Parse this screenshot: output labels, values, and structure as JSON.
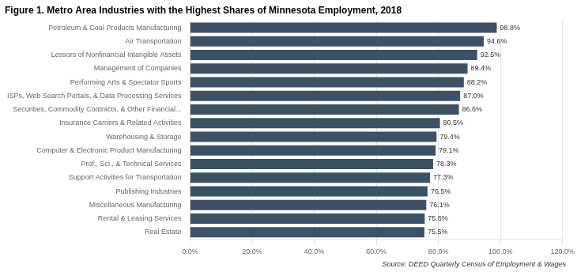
{
  "chart_data": {
    "type": "bar",
    "orientation": "horizontal",
    "title": "Figure 1. Metro Area Industries with the Highest Shares of Minnesota Employment, 2018",
    "annotations": [
      "Source: DEED Quarterly Census of Employment & Wages"
    ],
    "categories": [
      "Real Estate",
      "Rental & Leasing Services",
      "Miscellaneous Manufacturing",
      "Publishing Industries",
      "Support Activities for Transportation",
      "Prof., Sci., & Technical Services",
      "Computer & Electronic Product Manufacturing",
      "Warehousing & Storage",
      "Insurance Carriers & Related Activities",
      "Securities, Commodity Contracts, & Other Financial...",
      "ISPs, Web Search Portals, & Data Processing Services",
      "Performing Arts & Spectator Sports",
      "Management of Companies",
      "Lessors of Nonfinancial Intangible Assets",
      "Air Transportation",
      "Petroleum & Coal Products Manufacturing"
    ],
    "values": [
      0.755,
      0.756,
      0.761,
      0.765,
      0.773,
      0.783,
      0.791,
      0.794,
      0.805,
      0.866,
      0.87,
      0.882,
      0.894,
      0.925,
      0.946,
      0.988
    ],
    "value_labels": [
      "75.5%",
      "75.6%",
      "76.1%",
      "76.5%",
      "77.3%",
      "78.3%",
      "79.1%",
      "79.4%",
      "80.5%",
      "86.6%",
      "87.0%",
      "88.2%",
      "89.4%",
      "92.5%",
      "94.6%",
      "98.8%"
    ],
    "data_labels": true,
    "color": "#3d5166",
    "xlim": [
      0,
      1.2
    ],
    "xticks": [
      {
        "value": 0.0,
        "label": "0.0%"
      },
      {
        "value": 0.2,
        "label": "20.0%"
      },
      {
        "value": 0.4,
        "label": "40.0%"
      },
      {
        "value": 0.6,
        "label": "60.0%"
      },
      {
        "value": 0.8,
        "label": "80.0%"
      },
      {
        "value": 1.0,
        "label": "100.0%"
      },
      {
        "value": 1.2,
        "label": "120.0%"
      }
    ],
    "grid": true
  }
}
